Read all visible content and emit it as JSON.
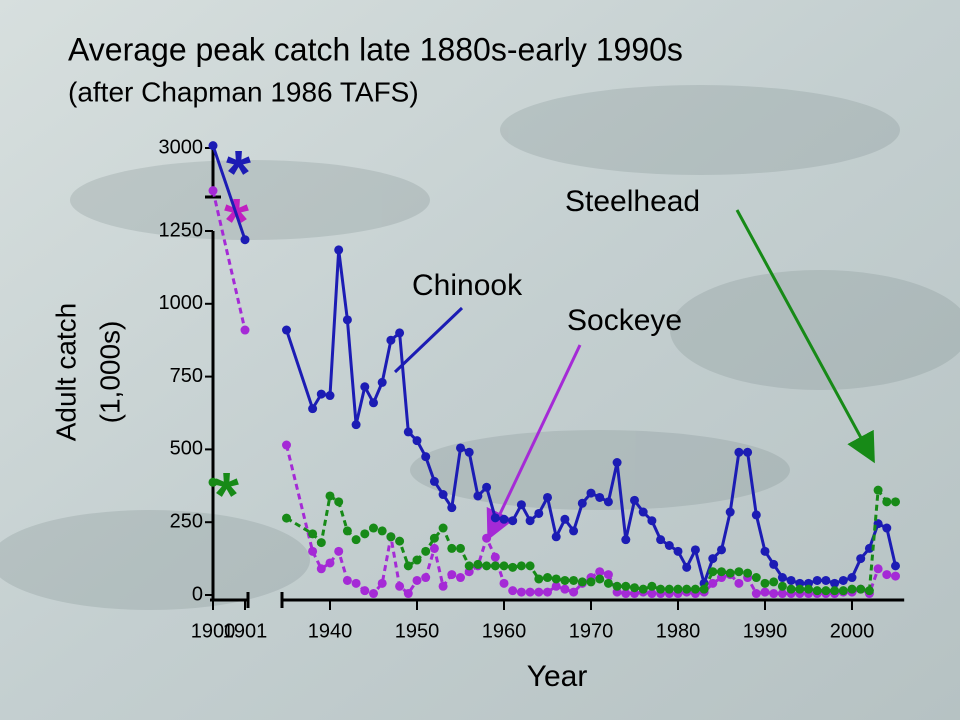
{
  "chart_data": {
    "type": "line",
    "title": "Average peak catch  late 1880s-early 1990s",
    "subtitle": "(after Chapman 1986 TAFS)",
    "xlabel": "Year",
    "ylabel": [
      "Adult catch",
      "(1,000s)"
    ],
    "x": [
      1900,
      1901,
      1935,
      1938,
      1939,
      1940,
      1941,
      1942,
      1943,
      1944,
      1945,
      1946,
      1947,
      1948,
      1949,
      1950,
      1951,
      1952,
      1953,
      1954,
      1955,
      1956,
      1957,
      1958,
      1959,
      1960,
      1961,
      1962,
      1963,
      1964,
      1965,
      1966,
      1967,
      1968,
      1969,
      1970,
      1971,
      1972,
      1973,
      1974,
      1975,
      1976,
      1977,
      1978,
      1979,
      1980,
      1981,
      1982,
      1983,
      1984,
      1985,
      1986,
      1987,
      1988,
      1989,
      1990,
      1991,
      1992,
      1993,
      1994,
      1995,
      1996,
      1997,
      1998,
      1999,
      2000,
      2001,
      2002,
      2003,
      2004,
      2005
    ],
    "series": [
      {
        "name": "Chinook",
        "color": "#1c1cb4",
        "line_style": "solid",
        "values": [
          3050,
          1220,
          910,
          640,
          690,
          685,
          1185,
          945,
          585,
          715,
          660,
          730,
          875,
          900,
          560,
          530,
          475,
          390,
          345,
          300,
          505,
          490,
          340,
          370,
          265,
          260,
          255,
          310,
          255,
          280,
          335,
          200,
          260,
          220,
          315,
          350,
          335,
          320,
          455,
          190,
          325,
          285,
          255,
          190,
          170,
          150,
          95,
          155,
          40,
          125,
          155,
          285,
          490,
          490,
          275,
          150,
          105,
          60,
          50,
          40,
          40,
          50,
          50,
          40,
          50,
          60,
          125,
          160,
          245,
          230,
          100
        ]
      },
      {
        "name": "Sockeye",
        "color": "#a52ad6",
        "line_style": "dashed",
        "values": [
          2100,
          910,
          515,
          150,
          90,
          110,
          150,
          50,
          40,
          15,
          5,
          40,
          200,
          30,
          5,
          50,
          60,
          160,
          30,
          70,
          60,
          80,
          100,
          195,
          130,
          40,
          15,
          10,
          10,
          10,
          10,
          30,
          20,
          10,
          40,
          60,
          80,
          70,
          10,
          5,
          5,
          10,
          5,
          5,
          5,
          5,
          10,
          5,
          10,
          40,
          60,
          70,
          40,
          60,
          5,
          10,
          5,
          5,
          5,
          5,
          5,
          5,
          5,
          5,
          10,
          10,
          20,
          5,
          90,
          70,
          65
        ]
      },
      {
        "name": "Steelhead",
        "color": "#178a17",
        "line_style": "dashed",
        "values": [
          387,
          null,
          264,
          210,
          180,
          340,
          320,
          220,
          190,
          210,
          230,
          220,
          200,
          185,
          100,
          120,
          150,
          195,
          230,
          160,
          160,
          100,
          105,
          100,
          100,
          100,
          95,
          100,
          100,
          55,
          60,
          55,
          50,
          50,
          45,
          45,
          55,
          40,
          30,
          30,
          25,
          20,
          30,
          20,
          20,
          20,
          20,
          20,
          20,
          80,
          80,
          75,
          80,
          75,
          60,
          40,
          45,
          30,
          20,
          20,
          20,
          15,
          15,
          15,
          15,
          20,
          20,
          15,
          360,
          320,
          320
        ]
      }
    ],
    "xlim": [
      1900,
      2006
    ],
    "xticks": [
      1900,
      1901,
      1940,
      1950,
      1960,
      1970,
      1980,
      1990,
      2000
    ],
    "ylim": [
      0,
      3000
    ],
    "yticks": [
      0,
      250,
      500,
      750,
      1000,
      1250,
      3000
    ],
    "annotations": [
      "Chinook",
      "Sockeye",
      "Steelhead",
      "*",
      "*",
      "*"
    ]
  }
}
